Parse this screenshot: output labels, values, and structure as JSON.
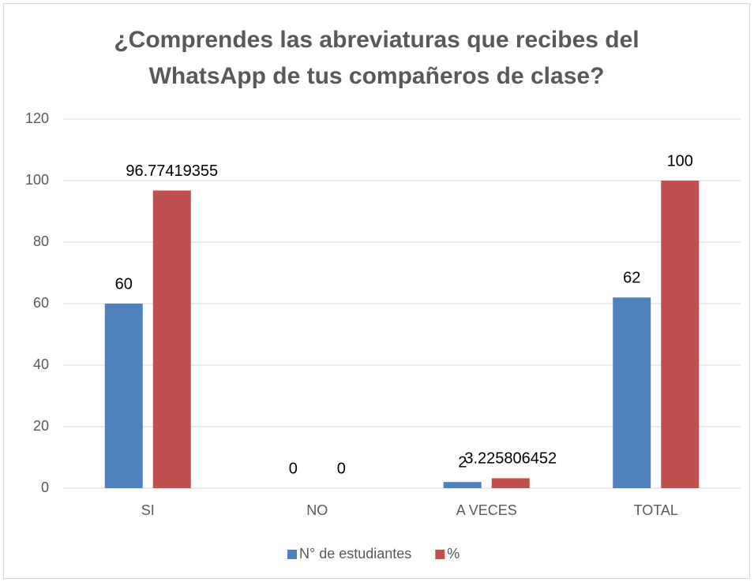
{
  "chart_data": {
    "type": "bar",
    "title": "¿Comprendes las abreviaturas que recibes del WhatsApp de tus compañeros de clase?",
    "categories": [
      "SI",
      "NO",
      "A VECES",
      "TOTAL"
    ],
    "series": [
      {
        "name": "N° de estudiantes",
        "color": "#4f81bd",
        "values": [
          60,
          0,
          2,
          62
        ]
      },
      {
        "name": "%",
        "color": "#c0504d",
        "values": [
          96.77419355,
          0,
          3.225806452,
          100
        ]
      }
    ],
    "ylim": [
      0,
      120
    ],
    "yticks": [
      0,
      20,
      40,
      60,
      80,
      100,
      120
    ],
    "grid": true,
    "legend": "bottom",
    "data_labels": true
  }
}
